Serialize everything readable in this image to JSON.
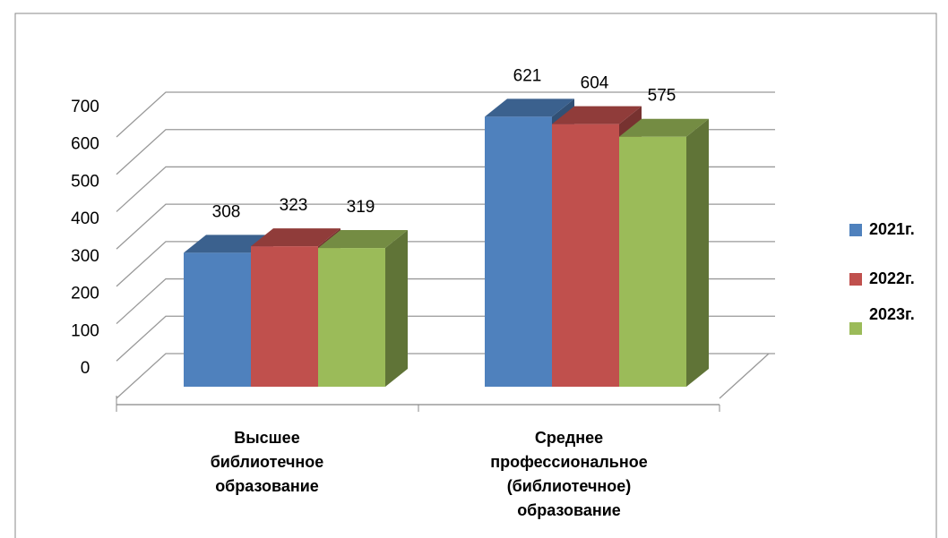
{
  "chart_data": {
    "type": "bar3d",
    "categories": [
      "Высшее библиотечное образование",
      "Среднее профессиональное (библиотечное) образование"
    ],
    "series": [
      {
        "name": "2021г.",
        "color": "#4f81bd",
        "values": [
          308,
          621
        ]
      },
      {
        "name": "2022г.",
        "color": "#c0504d",
        "values": [
          323,
          604
        ]
      },
      {
        "name": "2023г.",
        "color": "#9bbb59",
        "values": [
          319,
          575
        ]
      }
    ],
    "ylim": [
      0,
      700
    ],
    "yticks": [
      0,
      100,
      200,
      300,
      400,
      500,
      600,
      700
    ],
    "grid": true,
    "legend": "right"
  }
}
